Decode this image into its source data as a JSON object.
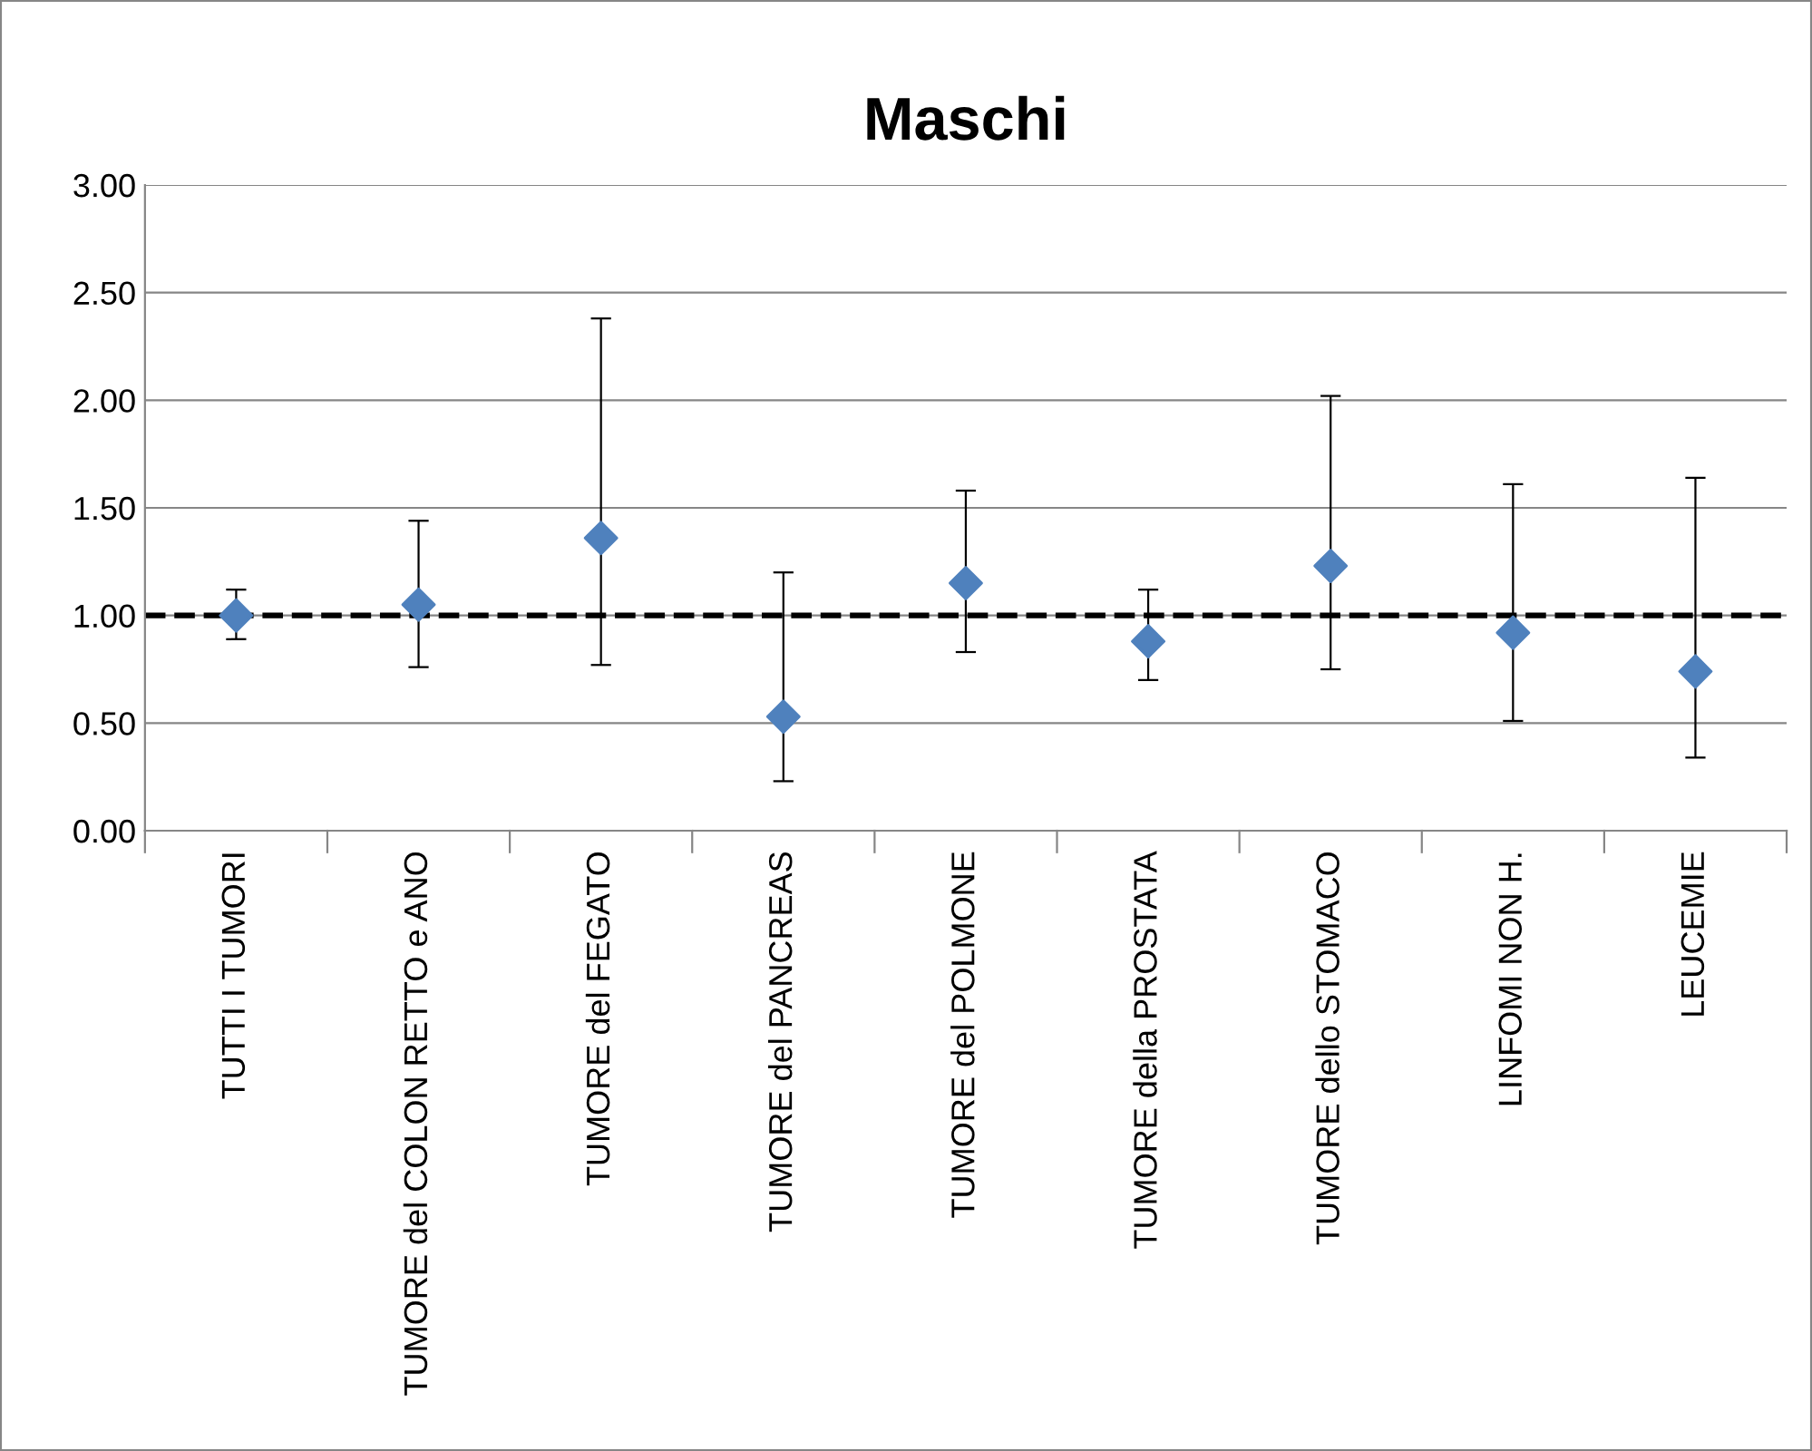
{
  "chart_data": {
    "type": "scatter",
    "title": "Maschi",
    "categories": [
      "TUTTI I TUMORI",
      "TUMORE del COLON RETTO e ANO",
      "TUMORE del FEGATO",
      "TUMORE del PANCREAS",
      "TUMORE del POLMONE",
      "TUMORE della PROSTATA",
      "TUMORE dello STOMACO",
      "LINFOMI NON H.",
      "LEUCEMIE"
    ],
    "series": [
      {
        "color": "#4f81bd",
        "values": [
          1.0,
          1.05,
          1.36,
          0.53,
          1.15,
          0.88,
          1.23,
          0.92,
          0.74
        ],
        "errors": [
          [
            0.89,
            1.12
          ],
          [
            0.76,
            1.44
          ],
          [
            0.77,
            2.38
          ],
          [
            0.23,
            1.2
          ],
          [
            0.83,
            1.58
          ],
          [
            0.7,
            1.12
          ],
          [
            0.75,
            2.02
          ],
          [
            0.51,
            1.61
          ],
          [
            0.34,
            1.64
          ]
        ]
      }
    ],
    "ylim": [
      0,
      3
    ],
    "yticks": [
      {
        "value": 0,
        "label": "0.00"
      },
      {
        "value": 0.5,
        "label": "0.50"
      },
      {
        "value": 1,
        "label": "1.00"
      },
      {
        "value": 1.5,
        "label": "1.50"
      },
      {
        "value": 2,
        "label": "2.00"
      },
      {
        "value": 2.5,
        "label": "2.50"
      },
      {
        "value": 3,
        "label": "3.00"
      }
    ],
    "grid": "y",
    "marker": "diamond",
    "legend": false,
    "ref_lines": [
      {
        "axis": "y",
        "value": 1.0,
        "color": "#000000",
        "line_style": "dashed"
      }
    ]
  }
}
